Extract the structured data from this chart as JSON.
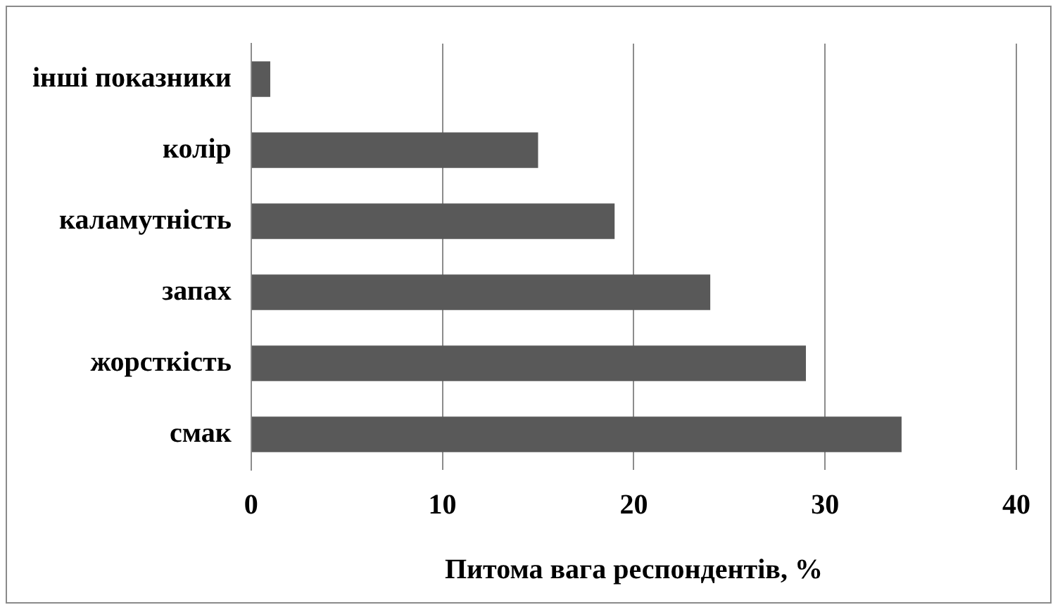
{
  "chart_data": {
    "type": "bar",
    "orientation": "horizontal",
    "xlabel": "Питома вага респондентів, %",
    "categories": [
      "інші показники",
      "колір",
      "каламутність",
      "запах",
      "жорсткість",
      "смак"
    ],
    "values": [
      1,
      15,
      19,
      24,
      29,
      34
    ],
    "color": "#595959",
    "xlim": [
      0,
      40
    ],
    "xticks": [
      0,
      10,
      20,
      30,
      40
    ],
    "grid": "x",
    "legend": false
  }
}
